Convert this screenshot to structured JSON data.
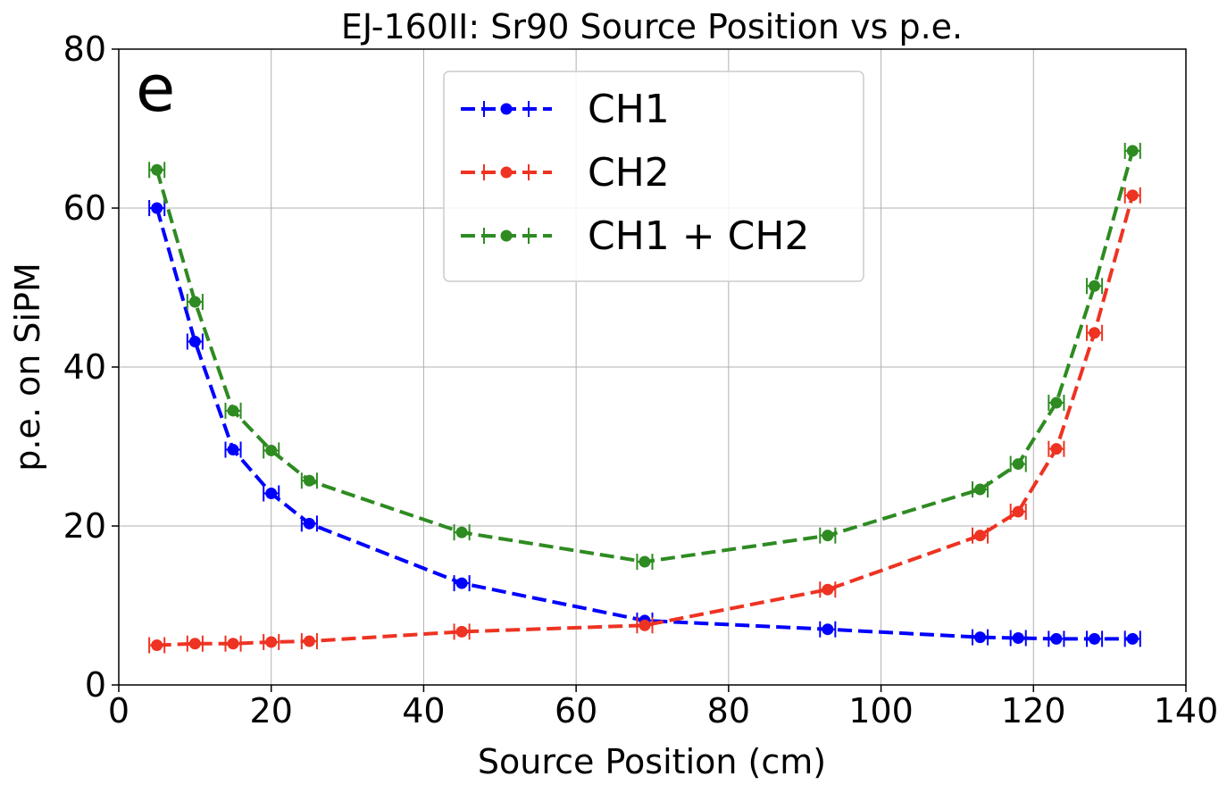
{
  "chart_data": {
    "type": "line",
    "title": "EJ-160II: Sr90 Source Position vs p.e.",
    "panel_label": "e",
    "xlabel": "Source Position (cm)",
    "ylabel": "p.e. on SiPM",
    "xlim": [
      0,
      140
    ],
    "ylim": [
      0,
      80
    ],
    "xticks": [
      0,
      20,
      40,
      60,
      80,
      100,
      120,
      140
    ],
    "yticks": [
      0,
      20,
      40,
      60,
      80
    ],
    "grid": true,
    "legend_position": "top-center",
    "x_error": 1.0,
    "y_error": 0.5,
    "series": [
      {
        "name": "CH1",
        "color": "#0000ff",
        "x": [
          5,
          10,
          15,
          20,
          25,
          45,
          69,
          93,
          113,
          118,
          123,
          128,
          133
        ],
        "y": [
          60.0,
          43.2,
          29.6,
          24.1,
          20.3,
          12.8,
          8.1,
          7.0,
          6.0,
          5.9,
          5.8,
          5.8,
          5.8
        ]
      },
      {
        "name": "CH2",
        "color": "#ee3322",
        "x": [
          5,
          10,
          15,
          20,
          25,
          45,
          69,
          93,
          113,
          118,
          123,
          128,
          133
        ],
        "y": [
          5.0,
          5.2,
          5.2,
          5.4,
          5.5,
          6.7,
          7.5,
          12.0,
          18.8,
          21.8,
          29.7,
          44.3,
          61.6
        ]
      },
      {
        "name": "CH1 + CH2",
        "color": "#2e8b22",
        "x": [
          5,
          10,
          15,
          20,
          25,
          45,
          69,
          93,
          113,
          118,
          123,
          128,
          133
        ],
        "y": [
          64.8,
          48.2,
          34.5,
          29.5,
          25.7,
          19.2,
          15.5,
          18.8,
          24.6,
          27.8,
          35.5,
          50.2,
          67.2
        ]
      }
    ]
  }
}
